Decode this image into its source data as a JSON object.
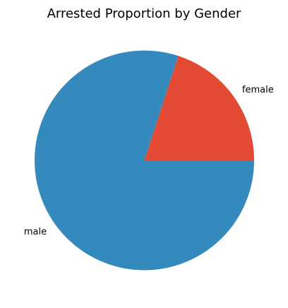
{
  "chart_data": {
    "type": "pie",
    "title": "Arrested Proportion by Gender",
    "slices": [
      {
        "label": "female",
        "value": 0.2,
        "color": "#e24a33"
      },
      {
        "label": "male",
        "value": 0.8,
        "color": "#348abd"
      }
    ],
    "start_angle_deg": 0,
    "direction": "counterclockwise",
    "legend": "none"
  }
}
